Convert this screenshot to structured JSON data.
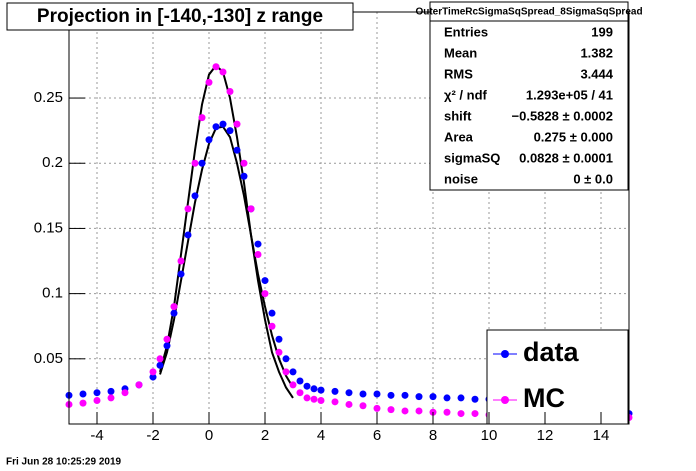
{
  "chart_data": {
    "type": "scatter",
    "title": "Projection in [-140,-130] z range",
    "date": "Fri Jun 28 10:25:29 2019",
    "xlim": [
      -5,
      15
    ],
    "ylim": [
      0,
      0.316
    ],
    "xticks": [
      -4,
      -2,
      0,
      2,
      4,
      6,
      8,
      10,
      12,
      14
    ],
    "yticks": [
      0.05,
      0.1,
      0.15,
      0.2,
      0.25
    ],
    "grid": true,
    "legend": "bottom-right",
    "x": [
      -5,
      -4.5,
      -4,
      -3.5,
      -3,
      -2.5,
      -2,
      -1.75,
      -1.5,
      -1.25,
      -1,
      -0.75,
      -0.5,
      -0.25,
      0,
      0.25,
      0.5,
      0.75,
      1,
      1.25,
      1.5,
      1.75,
      2,
      2.25,
      2.5,
      2.75,
      3,
      3.25,
      3.5,
      3.75,
      4,
      4.5,
      5,
      5.5,
      6,
      6.5,
      7,
      7.5,
      8,
      8.5,
      9,
      9.5,
      10,
      10.5,
      11,
      11.5,
      12,
      12.5,
      13,
      13.5,
      14,
      14.5,
      15
    ],
    "series": [
      {
        "name": "data",
        "color": "#0000ff",
        "values": [
          0.022,
          0.023,
          0.024,
          0.025,
          0.027,
          0.03,
          0.036,
          0.045,
          0.06,
          0.085,
          0.115,
          0.145,
          0.175,
          0.2,
          0.218,
          0.228,
          0.23,
          0.225,
          0.21,
          0.19,
          0.165,
          0.138,
          0.11,
          0.085,
          0.065,
          0.05,
          0.04,
          0.033,
          0.029,
          0.027,
          0.026,
          0.025,
          0.024,
          0.023,
          0.023,
          0.022,
          0.022,
          0.021,
          0.021,
          0.02,
          0.02,
          0.019,
          0.019,
          0.018,
          0.017,
          0.016,
          0.015,
          0.014,
          0.013,
          0.012,
          0.011,
          0.01,
          0.008
        ]
      },
      {
        "name": "MC",
        "color": "#ff00ff",
        "values": [
          0.015,
          0.016,
          0.018,
          0.02,
          0.024,
          0.03,
          0.04,
          0.05,
          0.065,
          0.09,
          0.125,
          0.165,
          0.2,
          0.235,
          0.262,
          0.274,
          0.27,
          0.255,
          0.23,
          0.2,
          0.165,
          0.13,
          0.1,
          0.075,
          0.055,
          0.04,
          0.03,
          0.024,
          0.02,
          0.019,
          0.018,
          0.017,
          0.015,
          0.014,
          0.012,
          0.011,
          0.01,
          0.01,
          0.009,
          0.009,
          0.008,
          0.008,
          0.007,
          0.007,
          0.007,
          0.006,
          0.006,
          0.006,
          0.006,
          0.005,
          0.005,
          0.005,
          0.005
        ]
      }
    ],
    "fits": [
      {
        "color": "#000000",
        "x": [
          -1.75,
          -1.5,
          -1.25,
          -1,
          -0.75,
          -0.5,
          -0.25,
          0,
          0.25,
          0.5,
          0.75,
          1,
          1.25,
          1.5,
          1.75,
          2,
          2.25,
          2.5,
          2.75,
          3
        ],
        "values": [
          0.04,
          0.06,
          0.09,
          0.13,
          0.17,
          0.21,
          0.245,
          0.268,
          0.275,
          0.27,
          0.25,
          0.22,
          0.185,
          0.145,
          0.11,
          0.08,
          0.055,
          0.04,
          0.028,
          0.02
        ]
      },
      {
        "color": "#000000",
        "x": [
          -1.75,
          -1.5,
          -1.25,
          -1,
          -0.75,
          -0.5,
          -0.25,
          0,
          0.25,
          0.5,
          0.75,
          1,
          1.25,
          1.5,
          1.75,
          2,
          2.25,
          2.5,
          2.75,
          3
        ],
        "values": [
          0.038,
          0.055,
          0.08,
          0.11,
          0.14,
          0.17,
          0.195,
          0.215,
          0.227,
          0.228,
          0.22,
          0.2,
          0.175,
          0.145,
          0.115,
          0.09,
          0.068,
          0.05,
          0.037,
          0.028
        ]
      }
    ],
    "stats": {
      "title": "OuterTimeRcSigmaSqSpread_8SigmaSqSpread",
      "rows": [
        [
          "Entries",
          "199"
        ],
        [
          "Mean",
          "1.382"
        ],
        [
          "RMS",
          "3.444"
        ],
        [
          "χ² / ndf",
          "1.293e+05 / 41"
        ],
        [
          "shift",
          "−0.5828 ± 0.0002"
        ],
        [
          "Area",
          "0.275 ± 0.000"
        ],
        [
          "sigmaSQ",
          "0.0828 ± 0.0001"
        ],
        [
          "noise",
          "0 ± 0.0"
        ]
      ]
    }
  }
}
